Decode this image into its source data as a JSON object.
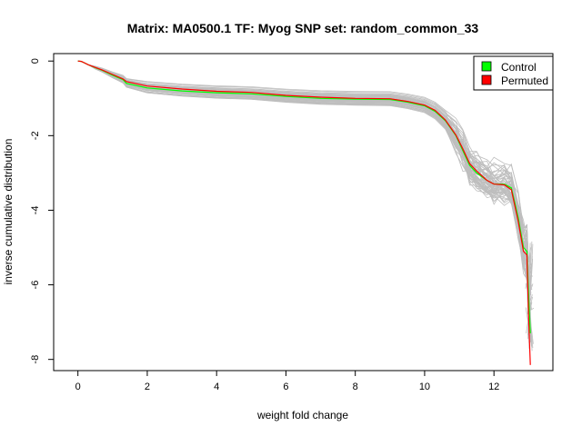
{
  "chart_data": {
    "type": "line",
    "title": "Matrix: MA0500.1 TF: Myog SNP set: random_common_33",
    "xlabel": "weight fold change",
    "ylabel": "inverse cumulative distribution",
    "xlim": [
      -0.7,
      13.7
    ],
    "ylim": [
      -8.3,
      0.2
    ],
    "x_ticks": [
      0,
      2,
      4,
      6,
      8,
      10,
      12
    ],
    "y_ticks": [
      0,
      -2,
      -4,
      -6,
      -8
    ],
    "grid": false,
    "legend": {
      "placement": "top-right",
      "entries": [
        {
          "label": "Control",
          "color": "#00ff00"
        },
        {
          "label": "Permuted",
          "color": "#ff0000"
        }
      ]
    },
    "colors": {
      "control": "#00ff00",
      "permuted": "#ff0000",
      "background_series": "#bebebe"
    },
    "background_series_count": 60,
    "series": [
      {
        "name": "Control",
        "color": "#00ff00",
        "x": [
          0.0,
          0.1,
          0.3,
          0.5,
          0.7,
          1.0,
          1.3,
          1.4,
          2.0,
          3.0,
          4.0,
          5.0,
          6.0,
          7.0,
          8.0,
          9.0,
          9.5,
          10.0,
          10.3,
          10.6,
          10.9,
          11.1,
          11.3,
          11.5,
          11.8,
          12.0,
          12.3,
          12.5,
          12.7,
          12.85,
          12.95,
          13.0,
          13.05
        ],
        "y": [
          0.0,
          -0.01,
          -0.1,
          -0.18,
          -0.25,
          -0.38,
          -0.5,
          -0.6,
          -0.72,
          -0.8,
          -0.85,
          -0.88,
          -0.95,
          -1.0,
          -1.02,
          -1.03,
          -1.1,
          -1.2,
          -1.35,
          -1.6,
          -2.0,
          -2.4,
          -2.8,
          -3.0,
          -3.2,
          -3.3,
          -3.3,
          -3.4,
          -4.2,
          -5.0,
          -5.1,
          -6.3,
          -7.3
        ]
      },
      {
        "name": "Permuted",
        "color": "#ff0000",
        "x": [
          0.0,
          0.1,
          0.3,
          0.5,
          0.7,
          1.0,
          1.3,
          1.4,
          2.0,
          3.0,
          4.0,
          5.0,
          6.0,
          7.0,
          8.0,
          9.0,
          9.5,
          10.0,
          10.3,
          10.6,
          10.9,
          11.1,
          11.3,
          11.5,
          11.8,
          12.0,
          12.3,
          12.5,
          12.7,
          12.85,
          12.95,
          13.0,
          13.05
        ],
        "y": [
          0.0,
          -0.01,
          -0.1,
          -0.17,
          -0.24,
          -0.36,
          -0.48,
          -0.55,
          -0.67,
          -0.75,
          -0.81,
          -0.84,
          -0.92,
          -0.97,
          -1.0,
          -1.01,
          -1.08,
          -1.18,
          -1.32,
          -1.58,
          -1.98,
          -2.35,
          -2.75,
          -2.95,
          -3.2,
          -3.3,
          -3.32,
          -3.45,
          -4.3,
          -5.1,
          -5.2,
          -6.9,
          -8.15
        ]
      }
    ]
  }
}
